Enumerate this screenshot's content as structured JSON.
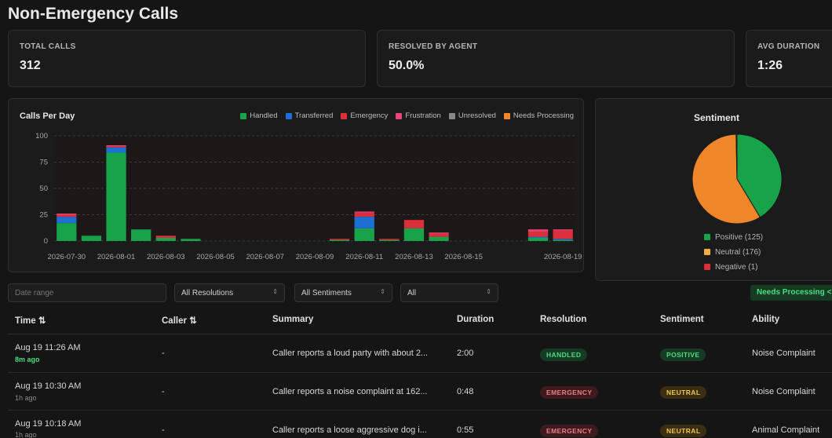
{
  "page": {
    "title": "Non-Emergency Calls"
  },
  "stats": [
    {
      "label": "TOTAL CALLS",
      "value": "312"
    },
    {
      "label": "RESOLVED BY AGENT",
      "value": "50.0%"
    },
    {
      "label": "AVG DURATION",
      "value": "1:26"
    }
  ],
  "chart_data": {
    "type": "bar",
    "stacked": true,
    "title": "Calls Per Day",
    "xlabel": "",
    "ylabel": "",
    "ylim": [
      0,
      100
    ],
    "yticks": [
      0,
      25,
      50,
      75,
      100
    ],
    "grid": true,
    "legend_position": "top-right",
    "categories": [
      "2026-07-30",
      "2026-07-31",
      "2026-08-01",
      "2026-08-02",
      "2026-08-03",
      "2026-08-04",
      "2026-08-05",
      "2026-08-06",
      "2026-08-07",
      "2026-08-08",
      "2026-08-09",
      "2026-08-10",
      "2026-08-11",
      "2026-08-12",
      "2026-08-13",
      "2026-08-14",
      "2026-08-15",
      "2026-08-16",
      "2026-08-17",
      "2026-08-18",
      "2026-08-19"
    ],
    "xtick_labels": [
      "2026-07-30",
      "2026-08-01",
      "2026-08-03",
      "2026-08-05",
      "2026-08-07",
      "2026-08-09",
      "2026-08-11",
      "2026-08-13",
      "2026-08-15",
      "2026-08-19"
    ],
    "series": [
      {
        "name": "Handled",
        "color": "#16a34a",
        "values": [
          17,
          5,
          84,
          11,
          3,
          2,
          0,
          0,
          0,
          0,
          0,
          1,
          12,
          1,
          12,
          4,
          0,
          0,
          0,
          3,
          1
        ]
      },
      {
        "name": "Transferred",
        "color": "#1d6fd1",
        "values": [
          6,
          0,
          5,
          0,
          0,
          0,
          0,
          0,
          0,
          0,
          0,
          0,
          11,
          0,
          0,
          0,
          0,
          0,
          0,
          1,
          1
        ]
      },
      {
        "name": "Emergency",
        "color": "#dc2f3c",
        "values": [
          2,
          0,
          1,
          0,
          2,
          0,
          0,
          0,
          0,
          0,
          0,
          1,
          4,
          1,
          8,
          3,
          0,
          0,
          0,
          5,
          8
        ]
      },
      {
        "name": "Frustration",
        "color": "#e8457a",
        "values": [
          1,
          0,
          1,
          0,
          0,
          0,
          0,
          0,
          0,
          0,
          0,
          0,
          1,
          0,
          0,
          1,
          0,
          0,
          0,
          2,
          1
        ]
      },
      {
        "name": "Unresolved",
        "color": "#888888",
        "values": [
          0,
          0,
          0,
          0,
          0,
          0,
          0,
          0,
          0,
          0,
          0,
          0,
          0,
          0,
          0,
          0,
          0,
          0,
          0,
          0,
          0
        ]
      },
      {
        "name": "Needs Processing",
        "color": "#f0862a",
        "values": [
          0,
          0,
          0,
          0,
          0,
          0,
          0,
          0,
          0,
          0,
          0,
          0,
          0,
          0,
          0,
          0,
          0,
          0,
          0,
          0,
          0
        ]
      }
    ]
  },
  "sentiment": {
    "title": "Sentiment",
    "slices": [
      {
        "label": "Positive (125)",
        "value": 125,
        "color": "#16a34a"
      },
      {
        "label": "Neutral (176)",
        "value": 176,
        "color": "#f0862a"
      },
      {
        "label": "Negative (1)",
        "value": 1,
        "color": "#dc2f3c"
      }
    ],
    "legend_colors": [
      "#16a34a",
      "#f3b041",
      "#dc2f3c"
    ]
  },
  "filters": {
    "date_placeholder": "Date range",
    "resolution": "All Resolutions",
    "sentiment": "All Sentiments",
    "ability": "All",
    "caret": "⇕",
    "needs_processing": "Needs Processing <"
  },
  "table": {
    "headers": {
      "time": "Time ⇅",
      "caller": "Caller ⇅",
      "summary": "Summary",
      "duration": "Duration",
      "resolution": "Resolution",
      "sentiment": "Sentiment",
      "ability": "Ability"
    },
    "rows": [
      {
        "time": "Aug 19 11:26 AM",
        "ago": "8m ago",
        "caller": "-",
        "summary": "Caller reports a loud party with about 2...",
        "duration": "2:00",
        "resolution": "HANDLED",
        "sentiment": "POSITIVE",
        "ability": "Noise Complaint"
      },
      {
        "time": "Aug 19 10:30 AM",
        "ago": "1h ago",
        "caller": "-",
        "summary": "Caller reports a noise complaint at 162...",
        "duration": "0:48",
        "resolution": "EMERGENCY",
        "sentiment": "NEUTRAL",
        "ability": "Noise Complaint"
      },
      {
        "time": "Aug 19 10:18 AM",
        "ago": "1h ago",
        "caller": "-",
        "summary": "Caller reports a loose aggressive dog i...",
        "duration": "0:55",
        "resolution": "EMERGENCY",
        "sentiment": "NEUTRAL",
        "ability": "Animal Complaint"
      }
    ]
  }
}
